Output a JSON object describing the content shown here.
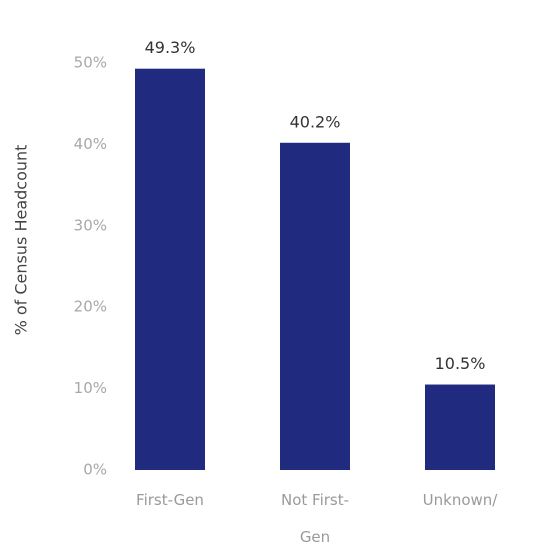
{
  "chart_data": {
    "type": "bar",
    "y_label": "% of Census Headcount",
    "categories": [
      "First-Gen",
      "Not First-Gen",
      "Unknown/"
    ],
    "values": [
      49.3,
      40.2,
      10.5
    ],
    "value_labels": [
      "49.3%",
      "40.2%",
      "10.5%"
    ],
    "color": "#202a7e",
    "ylim": [
      0,
      50
    ],
    "yticks": [
      {
        "value": 0,
        "label": "0%"
      },
      {
        "value": 10,
        "label": "10%"
      },
      {
        "value": 20,
        "label": "20%"
      },
      {
        "value": 30,
        "label": "30%"
      },
      {
        "value": 40,
        "label": "40%"
      },
      {
        "value": 50,
        "label": "50%"
      }
    ],
    "grid": false
  }
}
